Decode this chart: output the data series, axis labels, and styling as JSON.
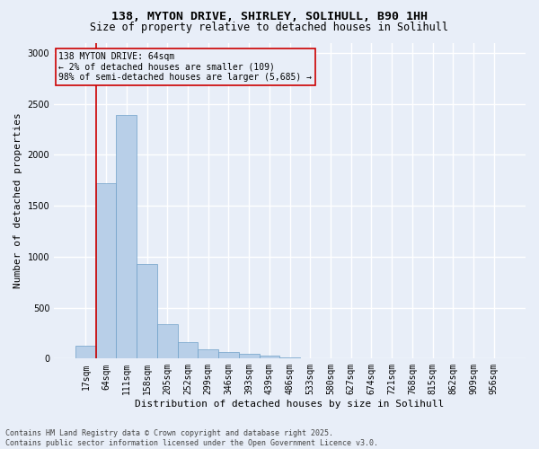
{
  "title_line1": "138, MYTON DRIVE, SHIRLEY, SOLIHULL, B90 1HH",
  "title_line2": "Size of property relative to detached houses in Solihull",
  "xlabel": "Distribution of detached houses by size in Solihull",
  "ylabel": "Number of detached properties",
  "annotation_title": "138 MYTON DRIVE: 64sqm",
  "annotation_line2": "← 2% of detached houses are smaller (109)",
  "annotation_line3": "98% of semi-detached houses are larger (5,685) →",
  "footer_line1": "Contains HM Land Registry data © Crown copyright and database right 2025.",
  "footer_line2": "Contains public sector information licensed under the Open Government Licence v3.0.",
  "bin_labels": [
    "17sqm",
    "64sqm",
    "111sqm",
    "158sqm",
    "205sqm",
    "252sqm",
    "299sqm",
    "346sqm",
    "393sqm",
    "439sqm",
    "486sqm",
    "533sqm",
    "580sqm",
    "627sqm",
    "674sqm",
    "721sqm",
    "768sqm",
    "815sqm",
    "862sqm",
    "909sqm",
    "956sqm"
  ],
  "bar_values": [
    130,
    1720,
    2390,
    930,
    340,
    160,
    90,
    65,
    45,
    25,
    15,
    0,
    0,
    0,
    0,
    0,
    0,
    0,
    0,
    0,
    0
  ],
  "bar_color": "#b8cfe8",
  "bar_edge_color": "#6ea0c8",
  "highlight_bar_index": 1,
  "highlight_color": "#cc0000",
  "annotation_box_color": "#cc0000",
  "ylim": [
    0,
    3100
  ],
  "yticks": [
    0,
    500,
    1000,
    1500,
    2000,
    2500,
    3000
  ],
  "bg_color": "#e8eef8",
  "grid_color": "#ffffff",
  "title_fontsize": 9.5,
  "subtitle_fontsize": 8.5,
  "axis_label_fontsize": 8,
  "tick_fontsize": 7,
  "annotation_fontsize": 7,
  "footer_fontsize": 6
}
